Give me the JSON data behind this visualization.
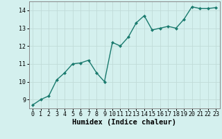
{
  "x": [
    0,
    1,
    2,
    3,
    4,
    5,
    6,
    7,
    8,
    9,
    10,
    11,
    12,
    13,
    14,
    15,
    16,
    17,
    18,
    19,
    20,
    21,
    22,
    23
  ],
  "y": [
    8.7,
    9.0,
    9.2,
    10.1,
    10.5,
    11.0,
    11.05,
    11.2,
    10.5,
    10.0,
    12.2,
    12.0,
    12.5,
    13.3,
    13.7,
    12.9,
    13.0,
    13.1,
    13.0,
    13.5,
    14.2,
    14.1,
    14.1,
    14.15
  ],
  "xlabel": "Humidex (Indice chaleur)",
  "ylim": [
    8.5,
    14.5
  ],
  "xlim": [
    -0.5,
    23.5
  ],
  "yticks": [
    9,
    10,
    11,
    12,
    13,
    14
  ],
  "xticks": [
    0,
    1,
    2,
    3,
    4,
    5,
    6,
    7,
    8,
    9,
    10,
    11,
    12,
    13,
    14,
    15,
    16,
    17,
    18,
    19,
    20,
    21,
    22,
    23
  ],
  "xtick_labels": [
    "0",
    "1",
    "2",
    "3",
    "4",
    "5",
    "6",
    "7",
    "8",
    "9",
    "10",
    "11",
    "12",
    "13",
    "14",
    "15",
    "16",
    "17",
    "18",
    "19",
    "20",
    "21",
    "22",
    "23"
  ],
  "line_color": "#1a7a6e",
  "marker": "D",
  "marker_size": 2.0,
  "line_width": 1.0,
  "bg_color": "#d4f0ee",
  "grid_color": "#c0dbd8",
  "tick_label_fontsize": 6.0,
  "xlabel_fontsize": 7.5,
  "xlabel_fontweight": "bold"
}
